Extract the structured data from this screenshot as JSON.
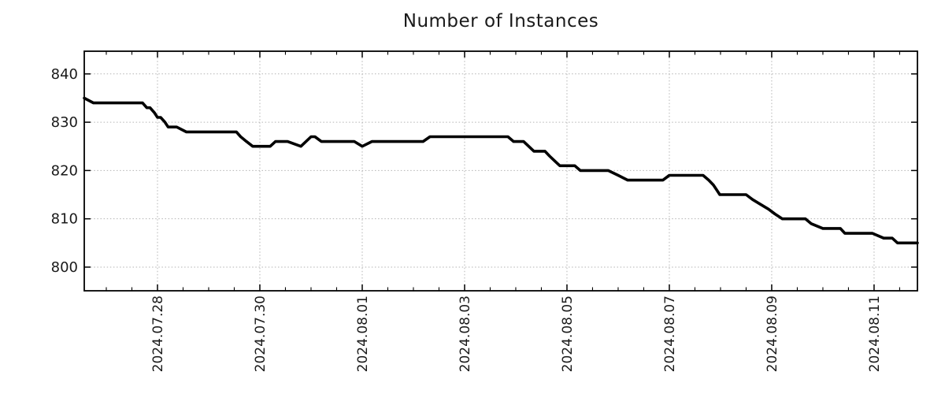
{
  "chart_data": {
    "type": "line",
    "title": "Number of Instances",
    "xlabel": "",
    "ylabel": "",
    "legend": "none",
    "grid": "dotted",
    "y_ticks": [
      "800",
      "810",
      "820",
      "830",
      "840"
    ],
    "ylim": [
      795.1,
      844.7
    ],
    "xlim": [
      "2024-07-26 13:40",
      "2024-08-11 20:20"
    ],
    "x_minor_interval_hours": 12,
    "x_ticks": [
      {
        "date": "2024-07-28",
        "label": "2024.07.28"
      },
      {
        "date": "2024-07-30",
        "label": "2024.07.30"
      },
      {
        "date": "2024-08-01",
        "label": "2024.08.01"
      },
      {
        "date": "2024-08-03",
        "label": "2024.08.03"
      },
      {
        "date": "2024-08-05",
        "label": "2024.08.05"
      },
      {
        "date": "2024-08-07",
        "label": "2024.08.07"
      },
      {
        "date": "2024-08-09",
        "label": "2024.08.09"
      },
      {
        "date": "2024-08-11",
        "label": "2024.08.11"
      }
    ],
    "series": [
      {
        "name": "Number of Instances",
        "color": "#000000",
        "points": [
          [
            "2024-07-26 13:40",
            835
          ],
          [
            "2024-07-26 18:00",
            834
          ],
          [
            "2024-07-27 17:00",
            834
          ],
          [
            "2024-07-27 19:00",
            833
          ],
          [
            "2024-07-27 20:30",
            833
          ],
          [
            "2024-07-27 22:30",
            832
          ],
          [
            "2024-07-28 00:00",
            831
          ],
          [
            "2024-07-28 01:30",
            831
          ],
          [
            "2024-07-28 03:30",
            830
          ],
          [
            "2024-07-28 05:00",
            829
          ],
          [
            "2024-07-28 09:00",
            829
          ],
          [
            "2024-07-28 13:30",
            828
          ],
          [
            "2024-07-29 13:00",
            828
          ],
          [
            "2024-07-29 15:00",
            827
          ],
          [
            "2024-07-29 17:45",
            826
          ],
          [
            "2024-07-29 20:40",
            825
          ],
          [
            "2024-07-30 04:50",
            825
          ],
          [
            "2024-07-30 07:20",
            826
          ],
          [
            "2024-07-30 13:00",
            826
          ],
          [
            "2024-07-30 19:15",
            825
          ],
          [
            "2024-07-31 00:00",
            827
          ],
          [
            "2024-07-31 01:50",
            827
          ],
          [
            "2024-07-31 04:50",
            826
          ],
          [
            "2024-07-31 20:20",
            826
          ],
          [
            "2024-08-01 00:00",
            825
          ],
          [
            "2024-08-01 04:30",
            826
          ],
          [
            "2024-08-02 04:30",
            826
          ],
          [
            "2024-08-02 07:45",
            827
          ],
          [
            "2024-08-03 20:20",
            827
          ],
          [
            "2024-08-03 23:00",
            826
          ],
          [
            "2024-08-04 03:40",
            826
          ],
          [
            "2024-08-04 08:30",
            824
          ],
          [
            "2024-08-04 13:40",
            824
          ],
          [
            "2024-08-04 15:50",
            823
          ],
          [
            "2024-08-04 18:10",
            822
          ],
          [
            "2024-08-04 20:40",
            821
          ],
          [
            "2024-08-05 03:40",
            821
          ],
          [
            "2024-08-05 06:15",
            820
          ],
          [
            "2024-08-05 19:20",
            820
          ],
          [
            "2024-08-06 00:00",
            819
          ],
          [
            "2024-08-06 04:30",
            818
          ],
          [
            "2024-08-06 21:00",
            818
          ],
          [
            "2024-08-07 00:00",
            819
          ],
          [
            "2024-08-07 15:50",
            819
          ],
          [
            "2024-08-07 18:30",
            818
          ],
          [
            "2024-08-07 20:40",
            817
          ],
          [
            "2024-08-07 22:10",
            816
          ],
          [
            "2024-08-07 23:40",
            815
          ],
          [
            "2024-08-08 12:00",
            815
          ],
          [
            "2024-08-08 15:00",
            814
          ],
          [
            "2024-08-08 18:45",
            813
          ],
          [
            "2024-08-08 22:30",
            812
          ],
          [
            "2024-08-09 01:30",
            811
          ],
          [
            "2024-08-09 05:00",
            810
          ],
          [
            "2024-08-09 15:50",
            810
          ],
          [
            "2024-08-09 18:30",
            809
          ],
          [
            "2024-08-10 00:00",
            808
          ],
          [
            "2024-08-10 08:10",
            808
          ],
          [
            "2024-08-10 10:20",
            807
          ],
          [
            "2024-08-10 23:15",
            807
          ],
          [
            "2024-08-11 04:30",
            806
          ],
          [
            "2024-08-11 08:30",
            806
          ],
          [
            "2024-08-11 11:00",
            805
          ],
          [
            "2024-08-11 20:20",
            805
          ]
        ]
      }
    ]
  },
  "style": {
    "line_color": "#000000",
    "grid_color": "#b3b3b3",
    "axis_color": "#000000",
    "text_color": "#1a1a1a",
    "background": "#ffffff"
  }
}
